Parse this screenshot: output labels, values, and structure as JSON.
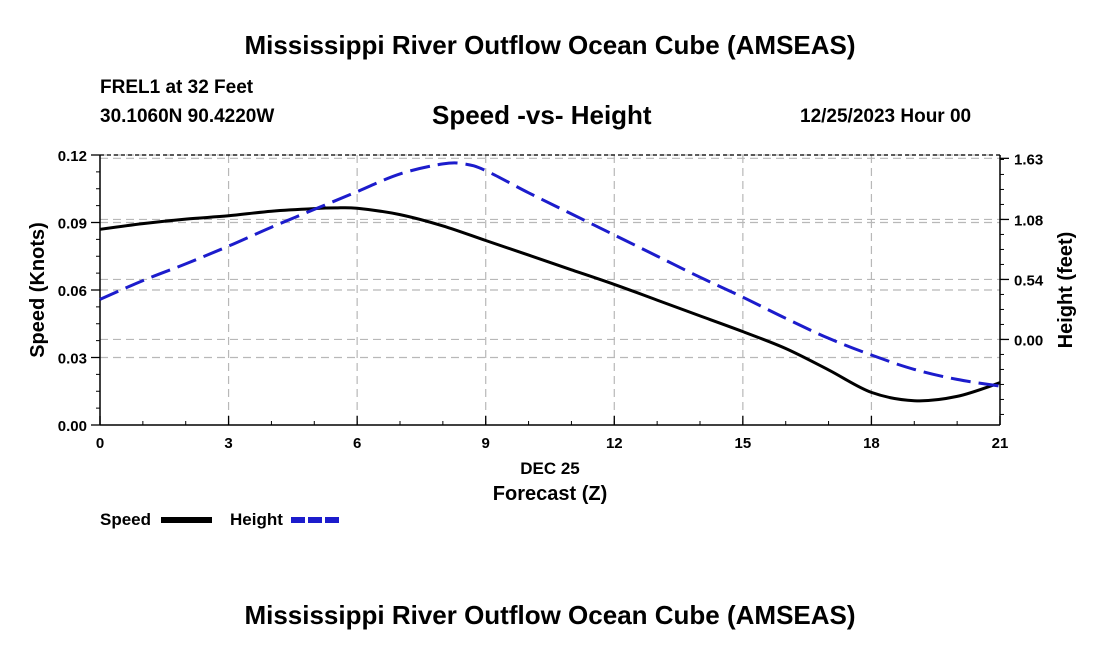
{
  "page": {
    "title": "Mississippi River Outflow Ocean Cube (AMSEAS)",
    "footer_title": "Mississippi River Outflow Ocean Cube (AMSEAS)",
    "station": "FREL1 at 32 Feet",
    "coordinates": "30.1060N  90.4220W",
    "date_label": "12/25/2023 Hour 00"
  },
  "chart_data": {
    "type": "line",
    "title": "Speed -vs- Height",
    "xlabel": "Forecast (Z)",
    "xlabel_date": "DEC 25",
    "xlim": [
      0,
      21
    ],
    "x_ticks": [
      0,
      3,
      6,
      9,
      12,
      15,
      18,
      21
    ],
    "y_left": {
      "label": "Speed (Knots)",
      "lim": [
        0,
        0.12
      ],
      "ticks": [
        0,
        0.03,
        0.06,
        0.09,
        0.12
      ],
      "tick_labels": [
        "0.00",
        "0.03",
        "0.06",
        "0.09",
        "0.12"
      ]
    },
    "y_right": {
      "label": "Height (feet)",
      "lim": [
        -0.77,
        1.66
      ],
      "ticks": [
        0.0,
        0.54,
        1.08,
        1.63
      ],
      "tick_labels": [
        "0.00",
        "0.54",
        "1.08",
        "1.63"
      ]
    },
    "grid": true,
    "legend_position": "bottom-left",
    "series": [
      {
        "name": "Speed",
        "axis": "left",
        "color": "#000000",
        "style": "solid",
        "x": [
          0,
          1,
          2,
          3,
          4,
          5,
          5.5,
          6,
          7,
          8,
          9,
          10,
          11,
          12,
          13,
          14,
          15,
          16,
          17,
          18,
          19,
          20,
          21
        ],
        "values": [
          0.087,
          0.0895,
          0.0915,
          0.093,
          0.095,
          0.0962,
          0.0965,
          0.0963,
          0.0935,
          0.0885,
          0.082,
          0.0755,
          0.069,
          0.0625,
          0.0555,
          0.0485,
          0.0415,
          0.034,
          0.0245,
          0.0145,
          0.0108,
          0.0127,
          0.0188
        ]
      },
      {
        "name": "Height",
        "axis": "right",
        "color": "#1c1ccc",
        "style": "dashed",
        "x": [
          0,
          1,
          2,
          3,
          4,
          5,
          6,
          7,
          8,
          8.5,
          9,
          10,
          11,
          12,
          13,
          14,
          15,
          16,
          17,
          18,
          19,
          20,
          21
        ],
        "values": [
          0.36,
          0.53,
          0.68,
          0.84,
          1.01,
          1.17,
          1.33,
          1.49,
          1.58,
          1.58,
          1.52,
          1.32,
          1.13,
          0.94,
          0.75,
          0.56,
          0.38,
          0.19,
          0.01,
          -0.14,
          -0.27,
          -0.36,
          -0.42
        ]
      }
    ]
  }
}
